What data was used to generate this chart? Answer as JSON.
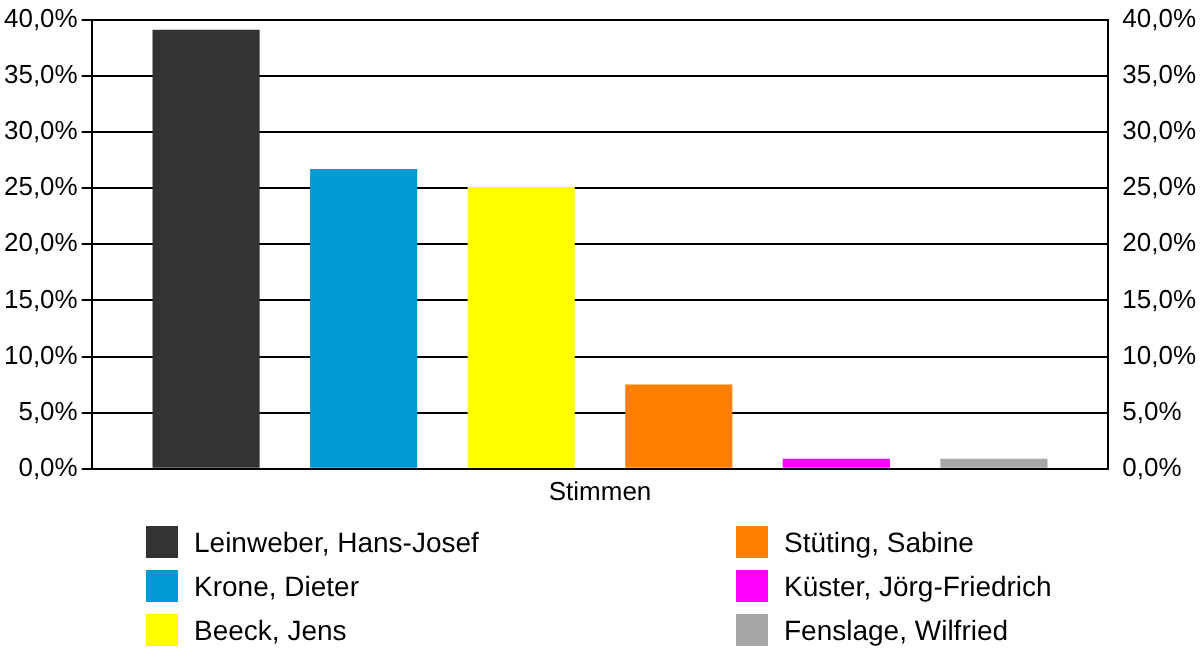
{
  "chart_data": {
    "type": "bar",
    "categories": [
      "Stimmen"
    ],
    "series": [
      {
        "name": "Leinweber, Hans-Josef",
        "color": "#333333",
        "values": [
          39.1
        ]
      },
      {
        "name": "Krone, Dieter",
        "color": "#0099d4",
        "values": [
          26.7
        ]
      },
      {
        "name": "Beeck, Jens",
        "color": "#ffff00",
        "values": [
          25.1
        ]
      },
      {
        "name": "Stüting, Sabine",
        "color": "#ff8000",
        "values": [
          7.5
        ]
      },
      {
        "name": "Küster, Jörg-Friedrich",
        "color": "#ff00ff",
        "values": [
          0.9
        ]
      },
      {
        "name": "Fenslage, Wilfried",
        "color": "#a6a6a6",
        "values": [
          0.9
        ]
      }
    ],
    "ylim": [
      0,
      40
    ],
    "yticks": [
      {
        "value": 0,
        "label": "0,0%"
      },
      {
        "value": 5,
        "label": "5,0%"
      },
      {
        "value": 10,
        "label": "10,0%"
      },
      {
        "value": 15,
        "label": "15,0%"
      },
      {
        "value": 20,
        "label": "20,0%"
      },
      {
        "value": 25,
        "label": "25,0%"
      },
      {
        "value": 30,
        "label": "30,0%"
      },
      {
        "value": 35,
        "label": "35,0%"
      },
      {
        "value": 40,
        "label": "40,0%"
      }
    ],
    "grid": "y",
    "legend": "bottom"
  }
}
